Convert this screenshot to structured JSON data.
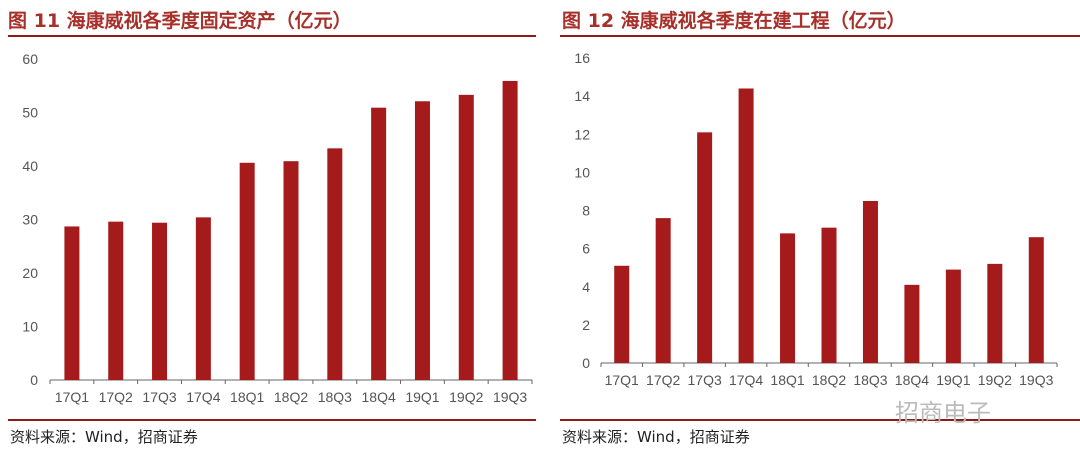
{
  "colors": {
    "bar": "#a51a1a",
    "title": "#a8302a",
    "rule": "#8c1c1c",
    "axis": "#555555"
  },
  "watermark": "招商电子",
  "chart_data": [
    {
      "type": "bar",
      "title": "图 11  海康威视各季度固定资产（亿元）",
      "source": "资料来源：Wind，招商证券",
      "categories": [
        "17Q1",
        "17Q2",
        "17Q3",
        "17Q4",
        "18Q1",
        "18Q2",
        "18Q3",
        "18Q4",
        "19Q1",
        "19Q2",
        "19Q3"
      ],
      "values": [
        28.7,
        29.6,
        29.4,
        30.4,
        40.6,
        40.9,
        43.3,
        50.9,
        52.1,
        53.3,
        55.9
      ],
      "ylim": [
        0,
        60
      ],
      "yticks": [
        "0",
        "10",
        "20",
        "30",
        "40",
        "50",
        "60"
      ],
      "grid": false
    },
    {
      "type": "bar",
      "title": "图 12  海康威视各季度在建工程（亿元）",
      "source": "资料来源：Wind，招商证券",
      "categories": [
        "17Q1",
        "17Q2",
        "17Q3",
        "17Q4",
        "18Q1",
        "18Q2",
        "18Q3",
        "18Q4",
        "19Q1",
        "19Q2",
        "19Q3"
      ],
      "values": [
        5.1,
        7.6,
        12.1,
        14.4,
        6.8,
        7.1,
        8.5,
        4.1,
        4.9,
        5.2,
        6.6
      ],
      "ylim": [
        0,
        16
      ],
      "yticks": [
        "0",
        "2",
        "4",
        "6",
        "8",
        "10",
        "12",
        "14",
        "16"
      ],
      "grid": false
    }
  ]
}
